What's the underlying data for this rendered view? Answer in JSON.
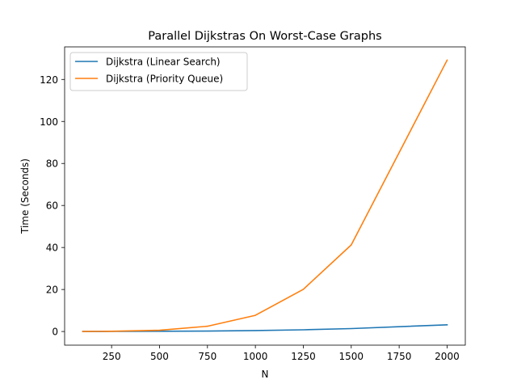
{
  "chart_data": {
    "type": "line",
    "title": "Parallel Dijkstras On Worst-Case Graphs",
    "xlabel": "N",
    "ylabel": "Time (Seconds)",
    "xlim": [
      5,
      2095
    ],
    "ylim": [
      -6.5,
      135.5
    ],
    "xticks": [
      250,
      500,
      750,
      1000,
      1250,
      1500,
      1750,
      2000
    ],
    "yticks": [
      0,
      20,
      40,
      60,
      80,
      100,
      120
    ],
    "x": [
      100,
      250,
      500,
      750,
      1000,
      1250,
      1500,
      2000
    ],
    "series": [
      {
        "name": "Dijkstra (Linear Search)",
        "color": "#1f77b4",
        "values": [
          0.0,
          0.05,
          0.1,
          0.2,
          0.45,
          0.8,
          1.4,
          3.2
        ]
      },
      {
        "name": "Dijkstra (Priority Queue)",
        "color": "#ff7f0e",
        "values": [
          0.0,
          0.1,
          0.6,
          2.5,
          7.7,
          20.1,
          41.2,
          129.2
        ]
      }
    ],
    "grid": false,
    "legend_position": "top-left"
  }
}
